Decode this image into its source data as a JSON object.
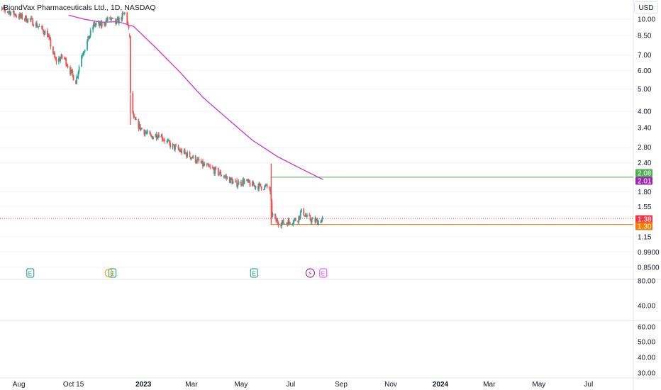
{
  "header": {
    "title": "BiondVax Pharmaceuticals Ltd., 1D, NASDAQ",
    "currency": "USD"
  },
  "colors": {
    "up": "#26a69a",
    "down": "#ef5350",
    "ma": "#cc33cc",
    "badge_green": "#4caf50",
    "badge_purple": "#9c27b0",
    "badge_red": "#f23645",
    "badge_orange": "#f57c00"
  },
  "chart_data": [
    {
      "type": "candlestick",
      "title": "BiondVax Pharmaceuticals Ltd., 1D, NASDAQ",
      "y_scale": "log",
      "ylim": [
        0.8,
        11.0
      ],
      "y_ticks": [
        "10.00",
        "8.50",
        "7.00",
        "6.00",
        "5.00",
        "4.00",
        "3.40",
        "2.80",
        "2.40",
        "1.80",
        "1.55",
        "1.15",
        "0.9900",
        "0.8500"
      ],
      "x_ticks": [
        "Aug",
        "Oct",
        "15",
        "2023",
        "Mar",
        "May",
        "Jul",
        "Sep",
        "Nov",
        "2024",
        "Mar",
        "May",
        "Jul"
      ],
      "x_ticks_bold": [
        "2023",
        "2024"
      ],
      "series": [
        {
          "kind": "ohlc_path",
          "points": [
            [
              "2022-07-01",
              11.2
            ],
            [
              "2022-07-20",
              10.8
            ],
            [
              "2022-08-01",
              10.3
            ],
            [
              "2022-08-15",
              9.9
            ],
            [
              "2022-08-25",
              9.3
            ],
            [
              "2022-09-05",
              8.6
            ],
            [
              "2022-09-15",
              6.6
            ],
            [
              "2022-09-25",
              6.9
            ],
            [
              "2022-10-01",
              6.2
            ],
            [
              "2022-10-06",
              5.7
            ],
            [
              "2022-10-10",
              5.4
            ],
            [
              "2022-10-17",
              7.0
            ],
            [
              "2022-10-24",
              8.0
            ],
            [
              "2022-11-01",
              9.5
            ],
            [
              "2022-11-10",
              9.4
            ],
            [
              "2022-11-20",
              10.1
            ],
            [
              "2022-11-28",
              9.6
            ],
            [
              "2022-12-05",
              10.2
            ],
            [
              "2022-12-10",
              10.7
            ],
            [
              "2022-12-15",
              8.5
            ],
            [
              "2022-12-16",
              4.7
            ],
            [
              "2022-12-20",
              3.7
            ],
            [
              "2022-12-28",
              3.4
            ],
            [
              "2023-01-10",
              3.1
            ],
            [
              "2023-01-20",
              3.2
            ],
            [
              "2023-02-01",
              2.9
            ],
            [
              "2023-02-15",
              2.7
            ],
            [
              "2023-03-01",
              2.55
            ],
            [
              "2023-03-15",
              2.35
            ],
            [
              "2023-04-01",
              2.2
            ],
            [
              "2023-04-15",
              2.05
            ],
            [
              "2023-04-25",
              1.95
            ],
            [
              "2023-05-05",
              2.0
            ],
            [
              "2023-05-15",
              1.92
            ],
            [
              "2023-05-25",
              1.9
            ],
            [
              "2023-06-05",
              1.88
            ],
            [
              "2023-06-08",
              1.45
            ],
            [
              "2023-06-12",
              1.35
            ],
            [
              "2023-06-20",
              1.32
            ],
            [
              "2023-07-01",
              1.34
            ],
            [
              "2023-07-10",
              1.38
            ],
            [
              "2023-07-15",
              1.5
            ],
            [
              "2023-07-20",
              1.4
            ],
            [
              "2023-07-28",
              1.35
            ],
            [
              "2023-08-05",
              1.34
            ],
            [
              "2023-08-10",
              1.38
            ]
          ]
        },
        {
          "kind": "moving_average",
          "points": [
            [
              "2022-10-01",
              10.4
            ],
            [
              "2022-10-20",
              10.0
            ],
            [
              "2022-11-10",
              9.7
            ],
            [
              "2022-12-01",
              9.75
            ],
            [
              "2022-12-20",
              9.3
            ],
            [
              "2023-01-15",
              7.6
            ],
            [
              "2023-02-15",
              5.9
            ],
            [
              "2023-03-15",
              4.6
            ],
            [
              "2023-04-15",
              3.7
            ],
            [
              "2023-05-15",
              3.0
            ],
            [
              "2023-06-15",
              2.55
            ],
            [
              "2023-07-15",
              2.25
            ],
            [
              "2023-08-10",
              2.03
            ]
          ]
        }
      ],
      "price_lines": [
        {
          "value": 2.08,
          "label": "2.08",
          "color": "#4caf50"
        },
        {
          "value": 1.3,
          "label": "1.30",
          "color": "#f57c00"
        },
        {
          "value": 1.38,
          "label": "1.38",
          "color": "#f23645",
          "dotted": true
        }
      ],
      "price_badges": [
        {
          "value": 2.08,
          "label": "2.08",
          "color": "#4caf50"
        },
        {
          "value": 2.01,
          "label": "2.01",
          "color": "#9c27b0"
        },
        {
          "value": 1.38,
          "label": "1.38",
          "color": "#f23645"
        },
        {
          "value": 1.3,
          "label": "1.30",
          "color": "#f57c00"
        }
      ],
      "events": [
        {
          "date": "2022-08-15",
          "glyph": "E",
          "kind": "earnings"
        },
        {
          "date": "2022-11-24",
          "glyph": "E",
          "kind": "earnings"
        },
        {
          "date": "2023-05-17",
          "glyph": "E",
          "kind": "earnings"
        },
        {
          "date": "2023-07-25",
          "glyph": "⚡",
          "kind": "split"
        },
        {
          "date": "2023-08-10",
          "glyph": "E",
          "kind": "earnings_future"
        }
      ]
    },
    {
      "type": "volume_pane",
      "y_ticks": [
        "80.00",
        "40.00"
      ]
    },
    {
      "type": "indicator_pane",
      "y_ticks": [
        "60.00",
        "50.00",
        "40.00",
        "30.00"
      ]
    }
  ]
}
